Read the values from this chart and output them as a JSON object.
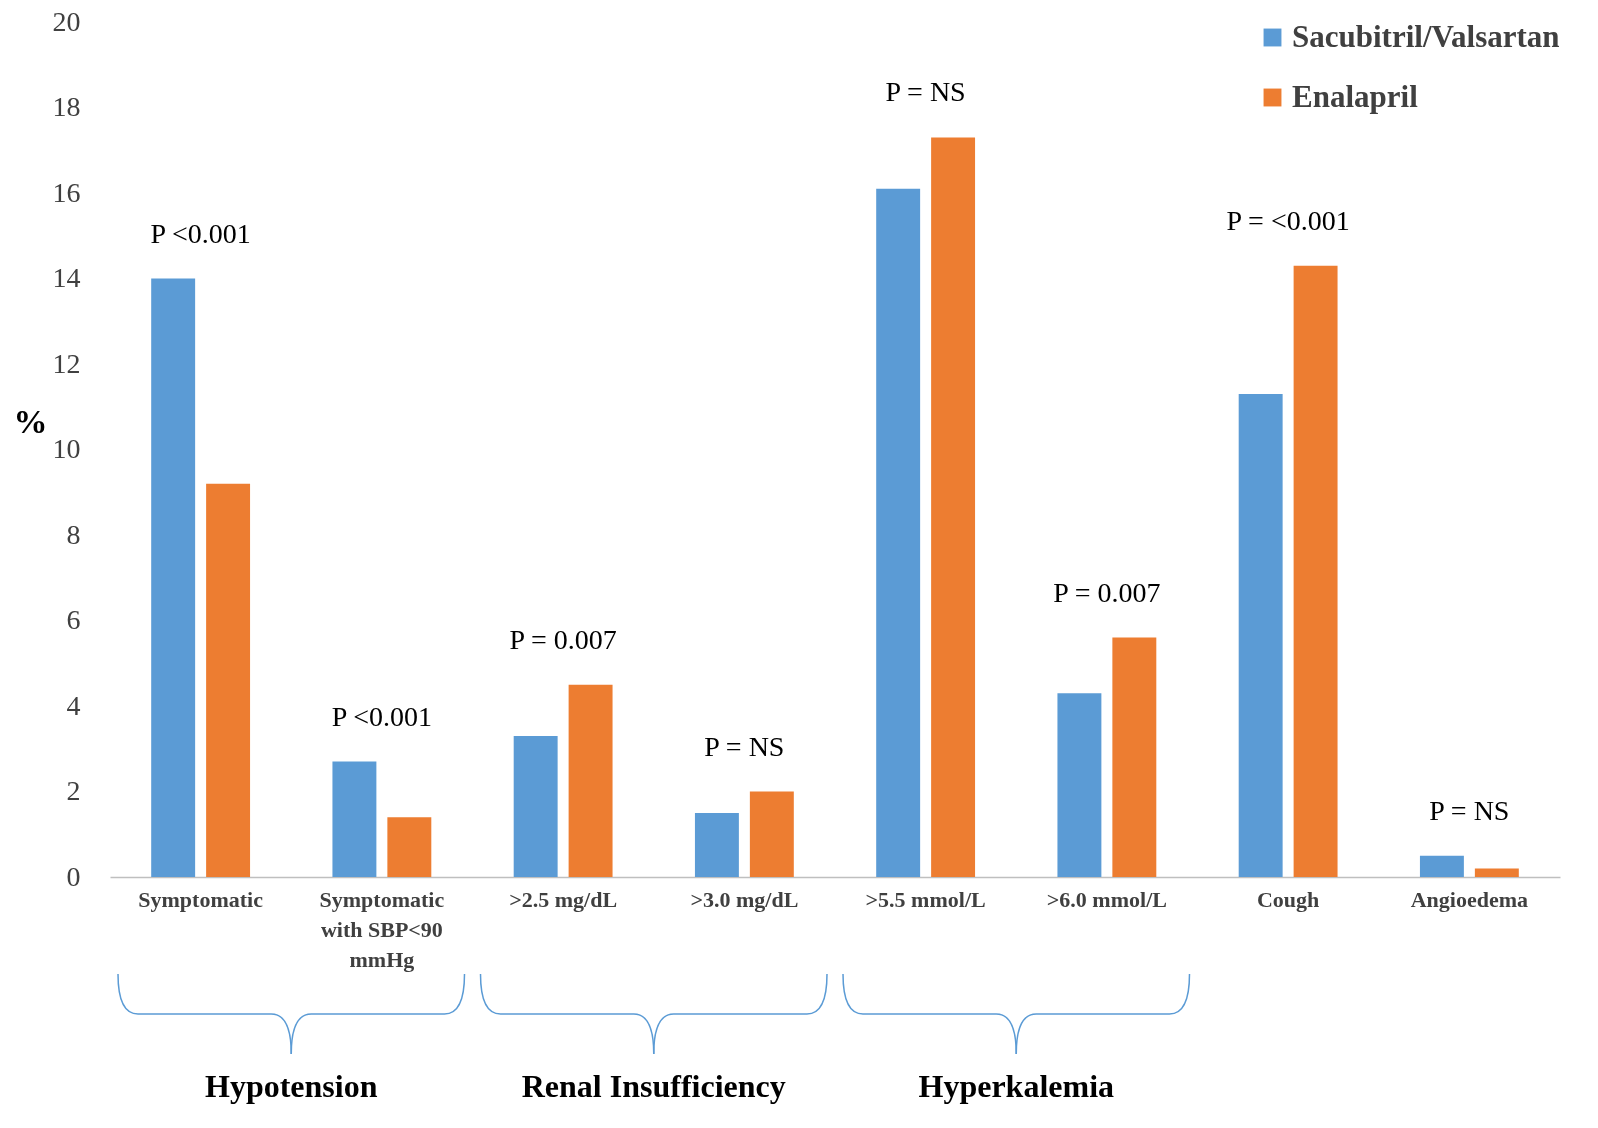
{
  "chart_data": {
    "type": "bar",
    "ylabel": "%",
    "categories": [
      "Symptomatic",
      "Symptomatic with SBP<90 mmHg",
      ">2.5 mg/dL",
      ">3.0 mg/dL",
      ">5.5 mmol/L",
      ">6.0 mmol/L",
      "Cough",
      "Angioedema"
    ],
    "series": [
      {
        "name": "Sacubitril/Valsartan",
        "color": "#5b9bd5",
        "values": [
          14.0,
          2.7,
          3.3,
          1.5,
          16.1,
          4.3,
          11.3,
          0.5
        ]
      },
      {
        "name": "Enalapril",
        "color": "#ed7d31",
        "values": [
          9.2,
          1.4,
          4.5,
          2.0,
          17.3,
          5.6,
          14.3,
          0.2
        ]
      }
    ],
    "ylim": [
      0,
      20
    ],
    "yticks": [
      0,
      2,
      4,
      6,
      8,
      10,
      12,
      14,
      16,
      18,
      20
    ],
    "legend": "top right",
    "annotations": [
      "P <0.001",
      "P <0.001",
      "P = 0.007",
      "P = NS",
      "P = NS",
      "P = 0.007",
      "P = <0.001",
      "P = NS",
      "Hypotension",
      "Renal Insufficiency",
      "Hyperkalemia"
    ]
  }
}
